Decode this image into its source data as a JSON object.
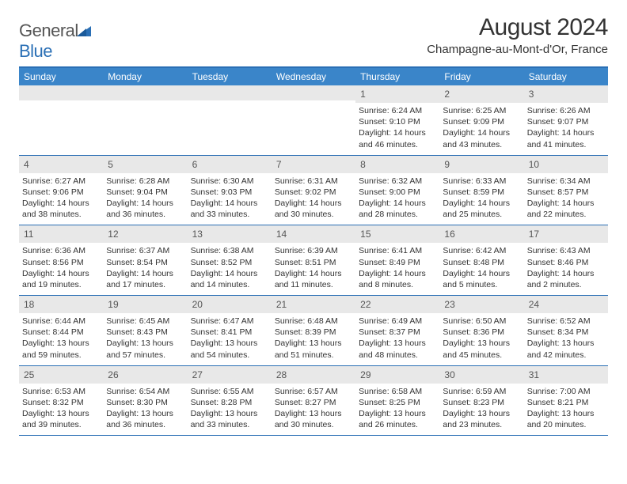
{
  "logo": {
    "text1": "General",
    "text2": "Blue"
  },
  "title": "August 2024",
  "subtitle": "Champagne-au-Mont-d'Or, France",
  "dayNames": [
    "Sunday",
    "Monday",
    "Tuesday",
    "Wednesday",
    "Thursday",
    "Friday",
    "Saturday"
  ],
  "colors": {
    "headerBar": "#3a85c9",
    "ruleLine": "#2a6fb5",
    "dayNumBg": "#e8e8e8",
    "text": "#333333"
  },
  "weeks": [
    [
      {
        "blank": true
      },
      {
        "blank": true
      },
      {
        "blank": true
      },
      {
        "blank": true
      },
      {
        "num": "1",
        "sunrise": "6:24 AM",
        "sunset": "9:10 PM",
        "daylight": "14 hours and 46 minutes."
      },
      {
        "num": "2",
        "sunrise": "6:25 AM",
        "sunset": "9:09 PM",
        "daylight": "14 hours and 43 minutes."
      },
      {
        "num": "3",
        "sunrise": "6:26 AM",
        "sunset": "9:07 PM",
        "daylight": "14 hours and 41 minutes."
      }
    ],
    [
      {
        "num": "4",
        "sunrise": "6:27 AM",
        "sunset": "9:06 PM",
        "daylight": "14 hours and 38 minutes."
      },
      {
        "num": "5",
        "sunrise": "6:28 AM",
        "sunset": "9:04 PM",
        "daylight": "14 hours and 36 minutes."
      },
      {
        "num": "6",
        "sunrise": "6:30 AM",
        "sunset": "9:03 PM",
        "daylight": "14 hours and 33 minutes."
      },
      {
        "num": "7",
        "sunrise": "6:31 AM",
        "sunset": "9:02 PM",
        "daylight": "14 hours and 30 minutes."
      },
      {
        "num": "8",
        "sunrise": "6:32 AM",
        "sunset": "9:00 PM",
        "daylight": "14 hours and 28 minutes."
      },
      {
        "num": "9",
        "sunrise": "6:33 AM",
        "sunset": "8:59 PM",
        "daylight": "14 hours and 25 minutes."
      },
      {
        "num": "10",
        "sunrise": "6:34 AM",
        "sunset": "8:57 PM",
        "daylight": "14 hours and 22 minutes."
      }
    ],
    [
      {
        "num": "11",
        "sunrise": "6:36 AM",
        "sunset": "8:56 PM",
        "daylight": "14 hours and 19 minutes."
      },
      {
        "num": "12",
        "sunrise": "6:37 AM",
        "sunset": "8:54 PM",
        "daylight": "14 hours and 17 minutes."
      },
      {
        "num": "13",
        "sunrise": "6:38 AM",
        "sunset": "8:52 PM",
        "daylight": "14 hours and 14 minutes."
      },
      {
        "num": "14",
        "sunrise": "6:39 AM",
        "sunset": "8:51 PM",
        "daylight": "14 hours and 11 minutes."
      },
      {
        "num": "15",
        "sunrise": "6:41 AM",
        "sunset": "8:49 PM",
        "daylight": "14 hours and 8 minutes."
      },
      {
        "num": "16",
        "sunrise": "6:42 AM",
        "sunset": "8:48 PM",
        "daylight": "14 hours and 5 minutes."
      },
      {
        "num": "17",
        "sunrise": "6:43 AM",
        "sunset": "8:46 PM",
        "daylight": "14 hours and 2 minutes."
      }
    ],
    [
      {
        "num": "18",
        "sunrise": "6:44 AM",
        "sunset": "8:44 PM",
        "daylight": "13 hours and 59 minutes."
      },
      {
        "num": "19",
        "sunrise": "6:45 AM",
        "sunset": "8:43 PM",
        "daylight": "13 hours and 57 minutes."
      },
      {
        "num": "20",
        "sunrise": "6:47 AM",
        "sunset": "8:41 PM",
        "daylight": "13 hours and 54 minutes."
      },
      {
        "num": "21",
        "sunrise": "6:48 AM",
        "sunset": "8:39 PM",
        "daylight": "13 hours and 51 minutes."
      },
      {
        "num": "22",
        "sunrise": "6:49 AM",
        "sunset": "8:37 PM",
        "daylight": "13 hours and 48 minutes."
      },
      {
        "num": "23",
        "sunrise": "6:50 AM",
        "sunset": "8:36 PM",
        "daylight": "13 hours and 45 minutes."
      },
      {
        "num": "24",
        "sunrise": "6:52 AM",
        "sunset": "8:34 PM",
        "daylight": "13 hours and 42 minutes."
      }
    ],
    [
      {
        "num": "25",
        "sunrise": "6:53 AM",
        "sunset": "8:32 PM",
        "daylight": "13 hours and 39 minutes."
      },
      {
        "num": "26",
        "sunrise": "6:54 AM",
        "sunset": "8:30 PM",
        "daylight": "13 hours and 36 minutes."
      },
      {
        "num": "27",
        "sunrise": "6:55 AM",
        "sunset": "8:28 PM",
        "daylight": "13 hours and 33 minutes."
      },
      {
        "num": "28",
        "sunrise": "6:57 AM",
        "sunset": "8:27 PM",
        "daylight": "13 hours and 30 minutes."
      },
      {
        "num": "29",
        "sunrise": "6:58 AM",
        "sunset": "8:25 PM",
        "daylight": "13 hours and 26 minutes."
      },
      {
        "num": "30",
        "sunrise": "6:59 AM",
        "sunset": "8:23 PM",
        "daylight": "13 hours and 23 minutes."
      },
      {
        "num": "31",
        "sunrise": "7:00 AM",
        "sunset": "8:21 PM",
        "daylight": "13 hours and 20 minutes."
      }
    ]
  ]
}
